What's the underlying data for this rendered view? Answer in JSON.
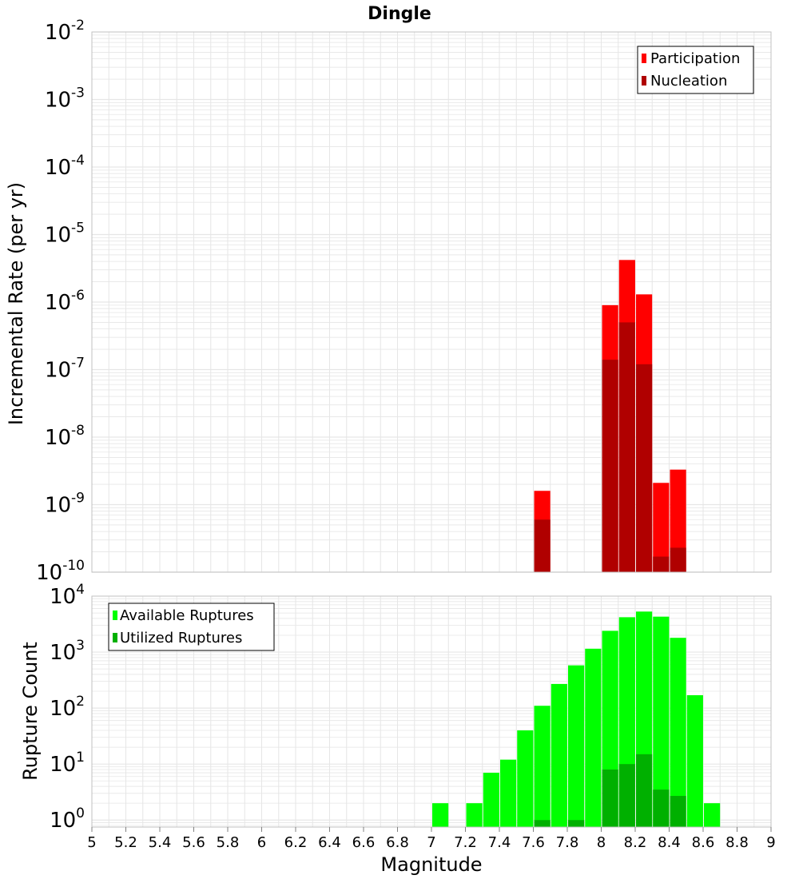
{
  "title": "Dingle",
  "xlabel": "Magnitude",
  "x_ticks": [
    5,
    5.2,
    5.4,
    5.6,
    5.8,
    6,
    6.2,
    6.4,
    6.6,
    6.8,
    7,
    7.2,
    7.4,
    7.6,
    7.8,
    8,
    8.2,
    8.4,
    8.6,
    8.8,
    9
  ],
  "x_tick_labels": [
    "5",
    "5.2",
    "5.4",
    "5.6",
    "5.8",
    "6",
    "6.2",
    "6.4",
    "6.6",
    "6.8",
    "7",
    "7.2",
    "7.4",
    "7.6",
    "7.8",
    "8",
    "8.2",
    "8.4",
    "8.6",
    "8.8",
    "9"
  ],
  "colors": {
    "participation": "#ff0000",
    "nucleation": "#b00000",
    "available": "#00ff00",
    "utilized": "#00b000",
    "grid": "#e6e6e6",
    "frame": "#c0c0c0"
  },
  "chart_data": [
    {
      "type": "bar",
      "title": "Dingle",
      "ylabel": "Incremental Rate (per yr)",
      "yscale": "log",
      "ylim": [
        1e-10,
        0.01
      ],
      "xlim": [
        5,
        9
      ],
      "y_tick_exponents": [
        "-2",
        "-3",
        "-4",
        "-5",
        "-6",
        "-7",
        "-8",
        "-9",
        "-10"
      ],
      "y_tick_base": "10",
      "legend_position": "top-right",
      "legend": [
        "Participation",
        "Nucleation"
      ],
      "series": [
        {
          "name": "Participation",
          "x": [
            7.65,
            8.05,
            8.15,
            8.25,
            8.35,
            8.45
          ],
          "values": [
            1.6e-09,
            9e-07,
            4.2e-06,
            1.3e-06,
            2.1e-09,
            3.3e-09
          ]
        },
        {
          "name": "Nucleation",
          "x": [
            7.65,
            8.05,
            8.15,
            8.25,
            8.35,
            8.45
          ],
          "values": [
            6e-10,
            1.4e-07,
            5e-07,
            1.2e-07,
            1.7e-10,
            2.3e-10
          ]
        }
      ]
    },
    {
      "type": "bar",
      "xlabel": "Magnitude",
      "ylabel": "Rupture Count",
      "yscale": "log",
      "ylim": [
        0.75,
        10000
      ],
      "xlim": [
        5,
        9
      ],
      "y_tick_exponents": [
        "4",
        "3",
        "2",
        "1",
        "0"
      ],
      "y_tick_base": "10",
      "legend_position": "top-left",
      "legend": [
        "Available Ruptures",
        "Utilized Ruptures"
      ],
      "series": [
        {
          "name": "Available Ruptures",
          "x": [
            7.05,
            7.25,
            7.35,
            7.45,
            7.55,
            7.65,
            7.75,
            7.85,
            7.95,
            8.05,
            8.15,
            8.25,
            8.35,
            8.45,
            8.55,
            8.65
          ],
          "values": [
            2,
            2,
            7,
            12,
            40,
            110,
            270,
            580,
            1150,
            2400,
            4200,
            5300,
            4300,
            1800,
            170,
            2
          ]
        },
        {
          "name": "Utilized Ruptures",
          "x": [
            7.65,
            7.85,
            8.05,
            8.15,
            8.25,
            8.35,
            8.45
          ],
          "values": [
            1,
            1,
            8,
            10,
            15,
            3.5,
            2.7
          ]
        }
      ]
    }
  ]
}
